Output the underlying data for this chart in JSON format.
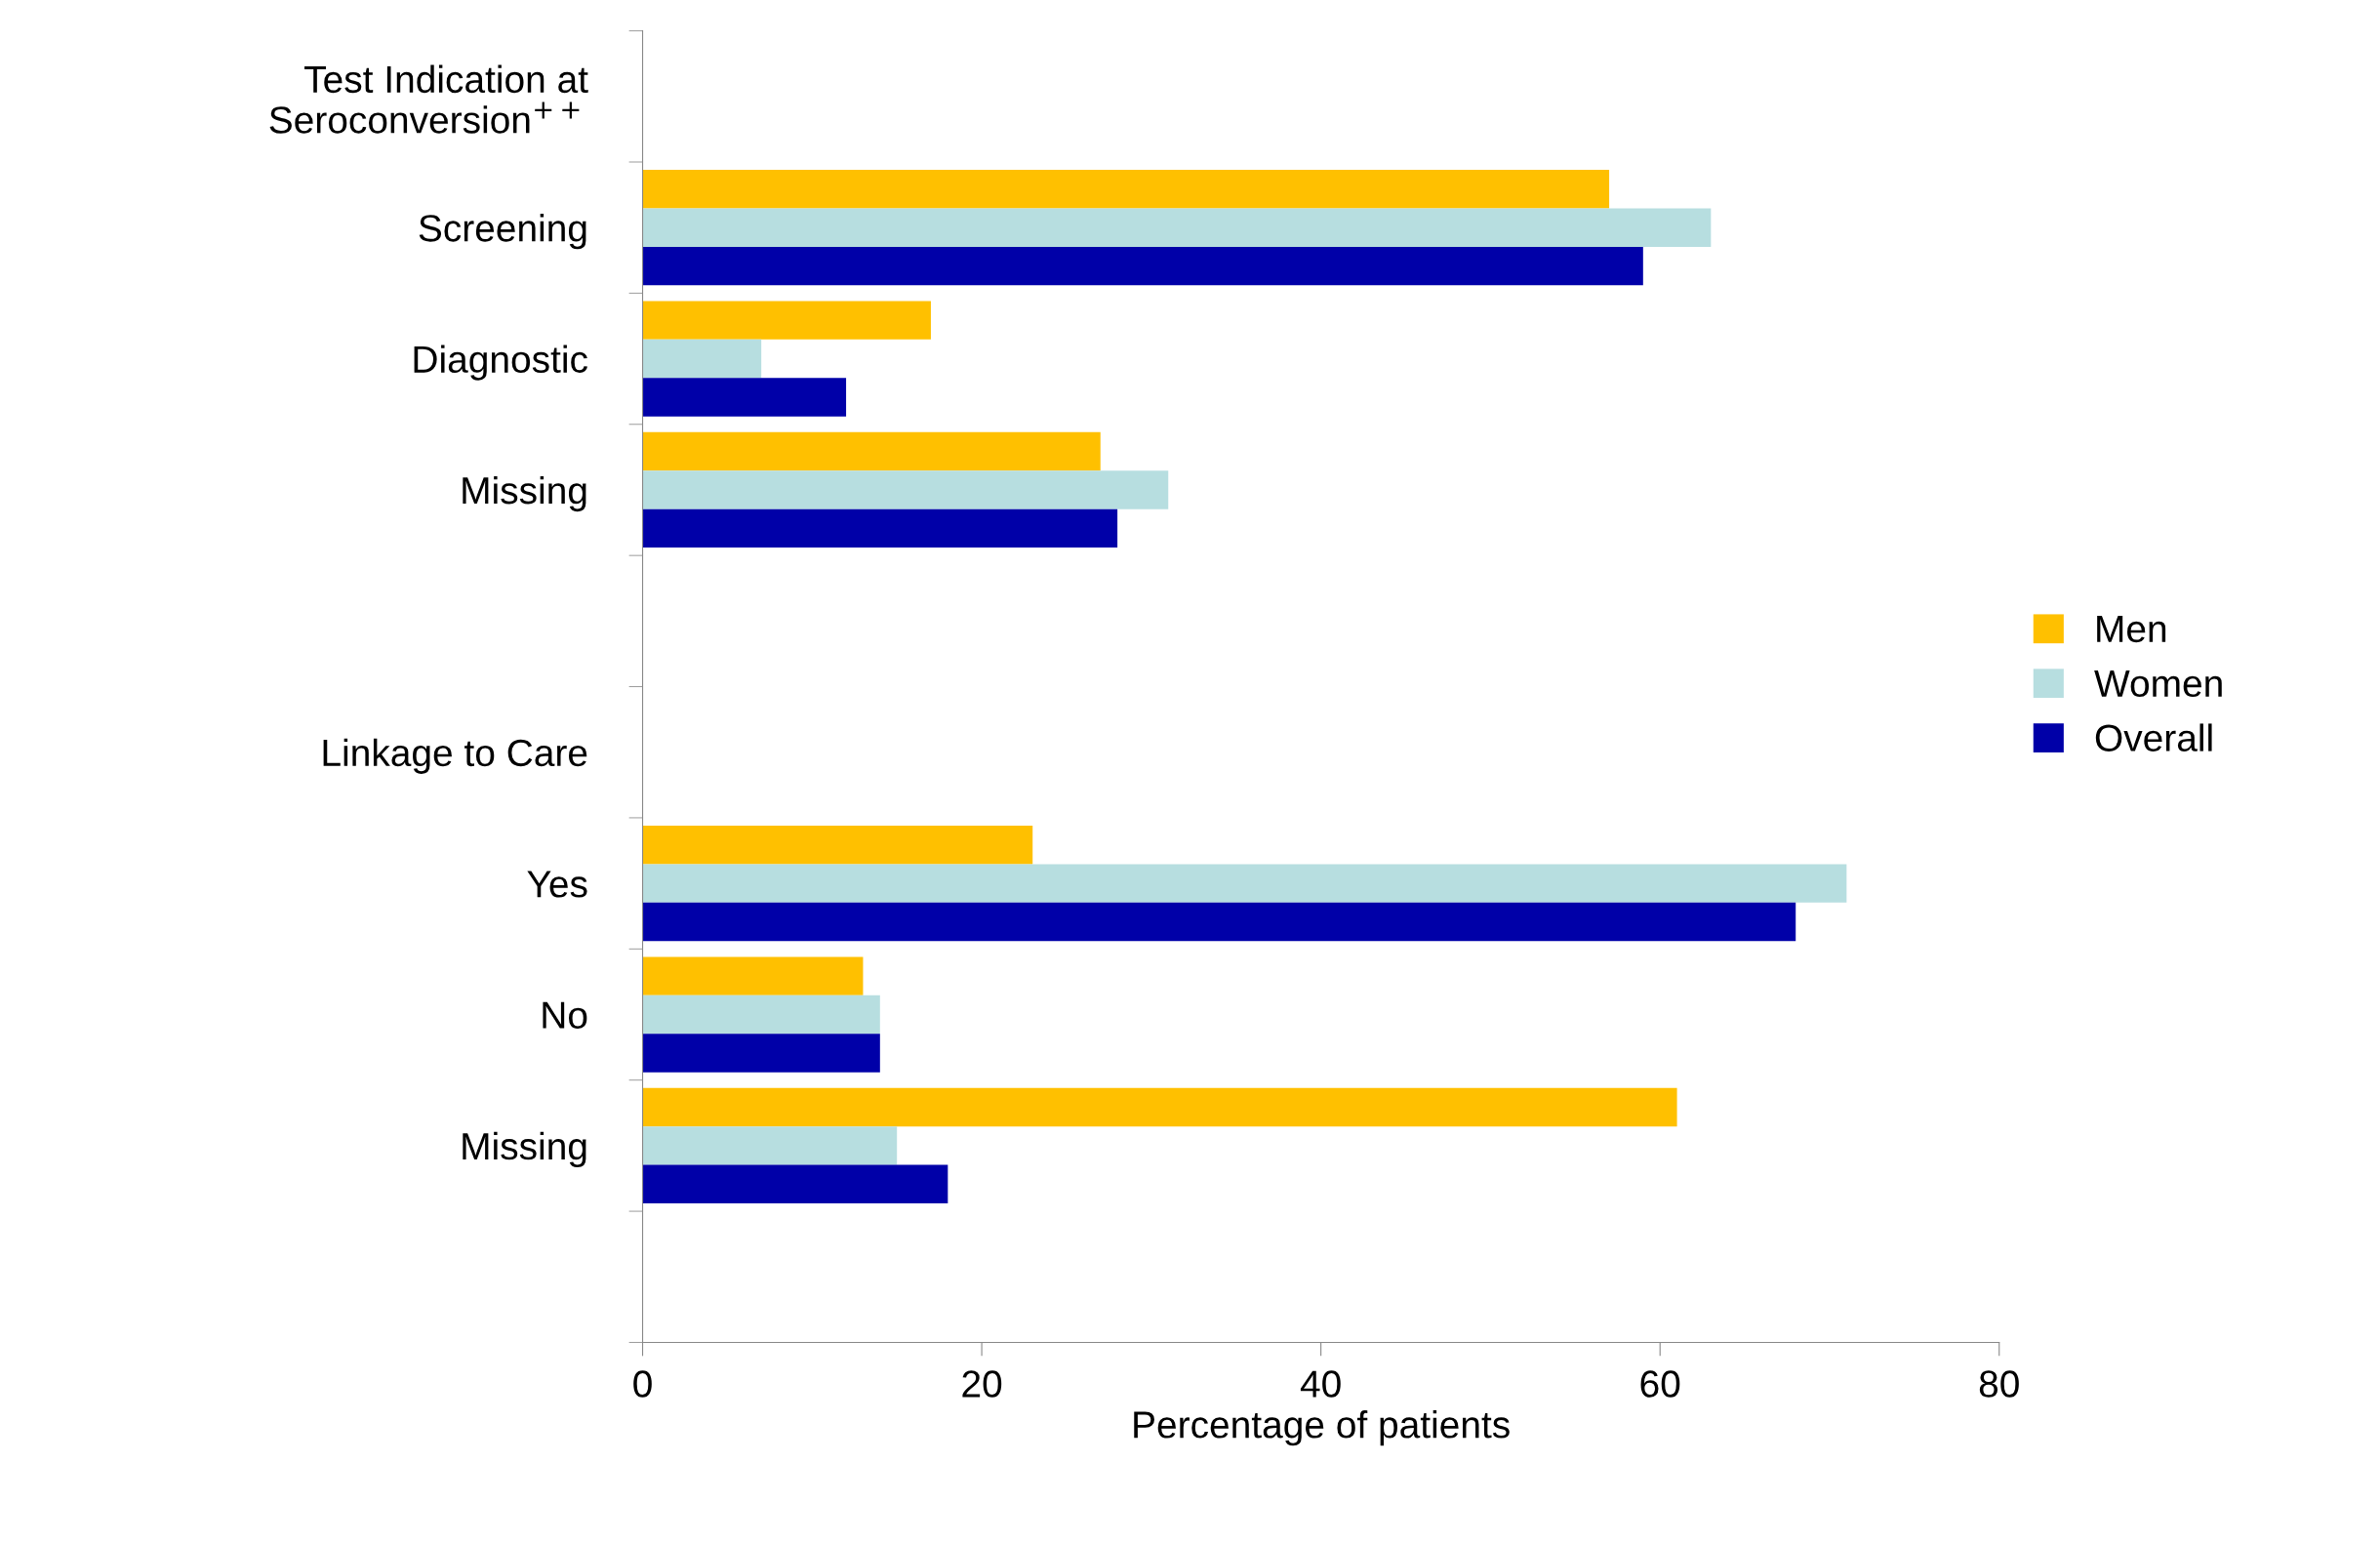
{
  "chart_data": {
    "type": "bar",
    "orientation": "horizontal",
    "xlabel": "Percentage of patients",
    "categories": [
      "Test Indication at\nSeroconversion$^{++}$",
      "Screening",
      "Diagnostic",
      "Missing",
      null,
      "Linkage to Care",
      "Yes",
      "No",
      "Missing",
      null
    ],
    "series": [
      {
        "name": "Men",
        "color": "#ffc000",
        "values": [
          null,
          57,
          17,
          27,
          null,
          null,
          23,
          13,
          61,
          null
        ]
      },
      {
        "name": "Women",
        "color": "#b7dee0",
        "values": [
          null,
          63,
          7,
          31,
          null,
          null,
          71,
          14,
          15,
          null
        ]
      },
      {
        "name": "Overall",
        "color": "#0000a8",
        "values": [
          null,
          59,
          12,
          28,
          null,
          null,
          68,
          14,
          18,
          null
        ]
      }
    ],
    "xlim": [
      0,
      80
    ],
    "xticks": [
      0,
      20,
      40,
      60,
      80
    ],
    "grid": false,
    "legend": "right"
  }
}
